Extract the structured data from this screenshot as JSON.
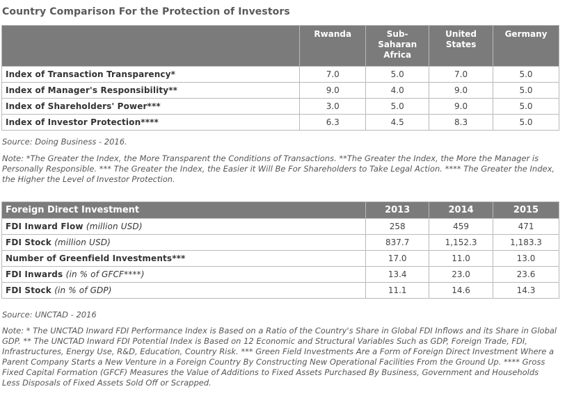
{
  "title": "Country Comparison For the Protection of Investors",
  "table1": {
    "headers": [
      "",
      "Rwanda",
      "Sub-Saharan Africa",
      "United States",
      "Germany"
    ],
    "header_lines": [
      [
        ""
      ],
      [
        "Rwanda"
      ],
      [
        "Sub-",
        "Saharan",
        "Africa"
      ],
      [
        "United",
        "States"
      ],
      [
        "Germany"
      ]
    ],
    "rows": [
      {
        "label": "Index of Transaction Transparency*",
        "values": [
          "7.0",
          "5.0",
          "7.0",
          "5.0"
        ]
      },
      {
        "label": "Index of Manager's Responsibility**",
        "values": [
          "9.0",
          "4.0",
          "9.0",
          "5.0"
        ]
      },
      {
        "label": "Index of Shareholders' Power***",
        "values": [
          "3.0",
          "5.0",
          "9.0",
          "5.0"
        ]
      },
      {
        "label": "Index of Investor Protection****",
        "values": [
          "6.3",
          "4.5",
          "8.3",
          "5.0"
        ]
      }
    ]
  },
  "source1": "Source: Doing Business - 2016.",
  "note1": "Note: *The Greater the Index, the More Transparent the Conditions of Transactions. **The Greater the Index, the More the Manager is Personally Responsible. *** The Greater the Index, the Easier it Will Be For Shareholders to Take Legal Action. **** The Greater the Index, the Higher the Level of Investor Protection.",
  "table2": {
    "headers": [
      "Foreign Direct Investment",
      "2013",
      "2014",
      "2015"
    ],
    "rows": [
      {
        "label": "FDI Inward Flow",
        "unit": "(million USD)",
        "values": [
          "258",
          "459",
          "471"
        ]
      },
      {
        "label": "FDI Stock",
        "unit": "(million USD)",
        "values": [
          "837.7",
          "1,152.3",
          "1,183.3"
        ]
      },
      {
        "label": "Number of Greenfield Investments***",
        "unit": "",
        "values": [
          "17.0",
          "11.0",
          "13.0"
        ]
      },
      {
        "label": "FDI Inwards",
        "unit": "(in % of GFCF****)",
        "values": [
          "13.4",
          "23.0",
          "23.6"
        ]
      },
      {
        "label": "FDI Stock",
        "unit": "(in % of GDP)",
        "values": [
          "11.1",
          "14.6",
          "14.3"
        ]
      }
    ]
  },
  "source2": "Source: UNCTAD - 2016",
  "note2": "Note: * The UNCTAD Inward FDI Performance Index is Based on a Ratio of the Country's Share in Global FDI Inflows and its Share in Global GDP. ** The UNCTAD Inward FDI Potential Index is Based on 12 Economic and Structural Variables Such as GDP, Foreign Trade, FDI, Infrastructures, Energy Use, R&D, Education, Country Risk. *** Green Field Investments Are a Form of Foreign Direct Investment Where a Parent Company Starts a New Venture in a Foreign Country By Constructing New Operational Facilities From the Ground Up. **** Gross Fixed Capital Formation (GFCF) Measures the Value of Additions to Fixed Assets Purchased By Business, Government and Households Less Disposals of Fixed Assets Sold Off or Scrapped."
}
